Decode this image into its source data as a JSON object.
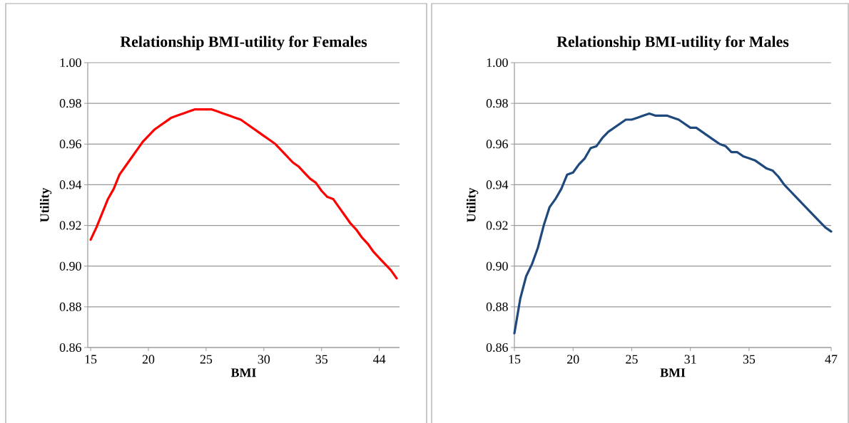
{
  "chart_data": [
    {
      "type": "line",
      "title": "Relationship BMI-utility for Females",
      "xlabel": "BMI",
      "ylabel": "Utility",
      "grid": "y",
      "categories": [
        "15",
        null,
        null,
        null,
        null,
        null,
        null,
        null,
        null,
        null,
        "20",
        null,
        null,
        null,
        null,
        null,
        null,
        null,
        null,
        null,
        "25",
        null,
        null,
        null,
        null,
        null,
        null,
        null,
        null,
        null,
        "30",
        null,
        null,
        null,
        null,
        null,
        null,
        null,
        null,
        null,
        "35",
        null,
        null,
        null,
        null,
        null,
        null,
        null,
        null,
        null,
        "44",
        null,
        null,
        null
      ],
      "series": [
        {
          "color": "#ff0000",
          "values": [
            0.913,
            0.919,
            0.926,
            0.933,
            0.938,
            0.945,
            0.949,
            0.953,
            0.957,
            0.961,
            0.964,
            0.967,
            0.969,
            0.971,
            0.973,
            0.974,
            0.975,
            0.976,
            0.977,
            0.977,
            0.977,
            0.977,
            0.976,
            0.975,
            0.974,
            0.973,
            0.972,
            0.97,
            0.968,
            0.966,
            0.964,
            0.962,
            0.96,
            0.957,
            0.954,
            0.951,
            0.949,
            0.946,
            0.943,
            0.941,
            0.937,
            0.934,
            0.933,
            0.929,
            0.925,
            0.921,
            0.918,
            0.914,
            0.911,
            0.907,
            0.904,
            0.901,
            0.898,
            0.894
          ]
        }
      ],
      "ylim": [
        0.86,
        1.0
      ],
      "yticks": [
        {
          "value": 0.86,
          "label": "0.86"
        },
        {
          "value": 0.88,
          "label": "0.88"
        },
        {
          "value": 0.9,
          "label": "0.90"
        },
        {
          "value": 0.92,
          "label": "0.92"
        },
        {
          "value": 0.94,
          "label": "0.94"
        },
        {
          "value": 0.96,
          "label": "0.96"
        },
        {
          "value": 0.98,
          "label": "0.98"
        },
        {
          "value": 1.0,
          "label": "1.00"
        }
      ]
    },
    {
      "type": "line",
      "title": "Relationship BMI-utility for Males",
      "xlabel": "BMI",
      "ylabel": "Utility",
      "grid": "y",
      "categories": [
        "15",
        null,
        null,
        null,
        null,
        null,
        null,
        null,
        null,
        null,
        "20",
        null,
        null,
        null,
        null,
        null,
        null,
        null,
        null,
        null,
        "25",
        null,
        null,
        null,
        null,
        null,
        null,
        null,
        null,
        null,
        "31",
        null,
        null,
        null,
        null,
        null,
        null,
        null,
        null,
        null,
        "35",
        null,
        null,
        null,
        null,
        null,
        null,
        null,
        null,
        null,
        null,
        null,
        null,
        null,
        "47"
      ],
      "series": [
        {
          "color": "#1f497d",
          "values": [
            0.867,
            0.884,
            0.895,
            0.901,
            0.909,
            0.92,
            0.929,
            0.933,
            0.938,
            0.945,
            0.946,
            0.95,
            0.953,
            0.958,
            0.959,
            0.963,
            0.966,
            0.968,
            0.97,
            0.972,
            0.972,
            0.973,
            0.974,
            0.975,
            0.974,
            0.974,
            0.974,
            0.973,
            0.972,
            0.97,
            0.968,
            0.968,
            0.966,
            0.964,
            0.962,
            0.96,
            0.959,
            0.956,
            0.956,
            0.954,
            0.953,
            0.952,
            0.95,
            0.948,
            0.947,
            0.944,
            0.94,
            0.937,
            0.934,
            0.931,
            0.928,
            0.925,
            0.922,
            0.919,
            0.917
          ]
        }
      ],
      "ylim": [
        0.86,
        1.0
      ],
      "yticks": [
        {
          "value": 0.86,
          "label": "0.86"
        },
        {
          "value": 0.88,
          "label": "0.88"
        },
        {
          "value": 0.9,
          "label": "0.90"
        },
        {
          "value": 0.92,
          "label": "0.92"
        },
        {
          "value": 0.94,
          "label": "0.94"
        },
        {
          "value": 0.96,
          "label": "0.96"
        },
        {
          "value": 0.98,
          "label": "0.98"
        },
        {
          "value": 1.0,
          "label": "1.00"
        }
      ]
    }
  ]
}
